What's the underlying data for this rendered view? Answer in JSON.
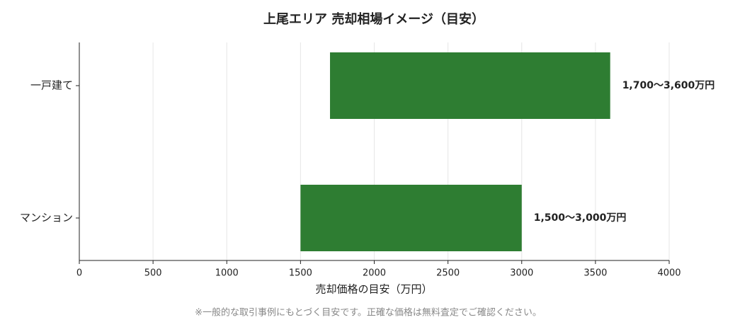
{
  "chart_data": {
    "type": "range-bar",
    "title": "上尾エリア 売却相場イメージ（目安）",
    "categories": [
      "一戸建て",
      "マンション"
    ],
    "low": [
      1700,
      1500
    ],
    "high": [
      3600,
      3000
    ],
    "value_labels": [
      "1,700〜3,600万円",
      "1,500〜3,000万円"
    ],
    "color": "#2e7d32",
    "xlabel": "売却価格の目安（万円）",
    "xlim": [
      0,
      4000
    ],
    "xticks": [
      0,
      500,
      1000,
      1500,
      2000,
      2500,
      3000,
      3500,
      4000
    ],
    "grid": true
  },
  "footnote": "※一般的な取引事例にもとづく目安です。正確な価格は無料査定でご確認ください。"
}
